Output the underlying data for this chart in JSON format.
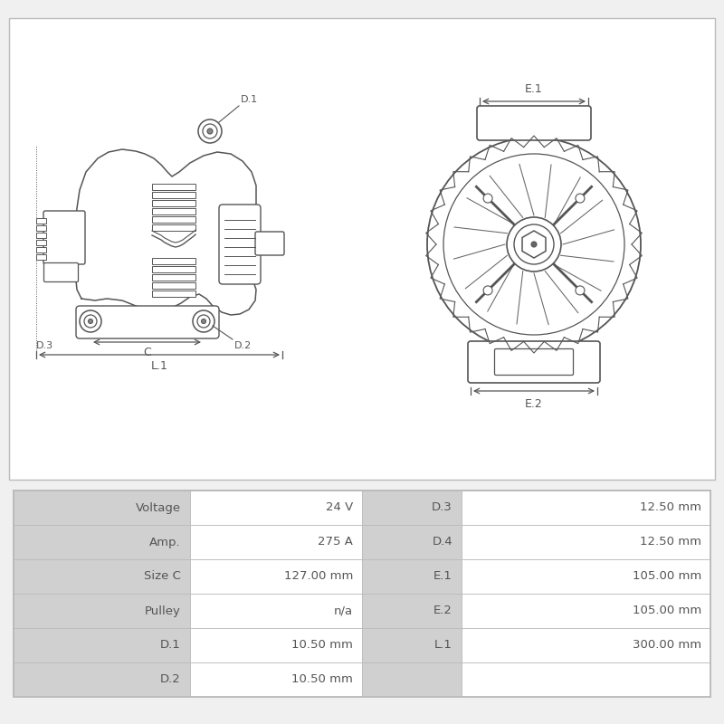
{
  "bg_color": "#f0f0f0",
  "line_color": "#555555",
  "text_color": "#555555",
  "table_header_color": "#d0d0d0",
  "table_row_color": "#ffffff",
  "border_color": "#bbbbbb",
  "table_data": [
    [
      "Voltage",
      "24 V",
      "D.3",
      "12.50 mm"
    ],
    [
      "Amp.",
      "275 A",
      "D.4",
      "12.50 mm"
    ],
    [
      "Size C",
      "127.00 mm",
      "E.1",
      "105.00 mm"
    ],
    [
      "Pulley",
      "n/a",
      "E.2",
      "105.00 mm"
    ],
    [
      "D.1",
      "10.50 mm",
      "L.1",
      "300.00 mm"
    ],
    [
      "D.2",
      "10.50 mm",
      "",
      ""
    ]
  ]
}
